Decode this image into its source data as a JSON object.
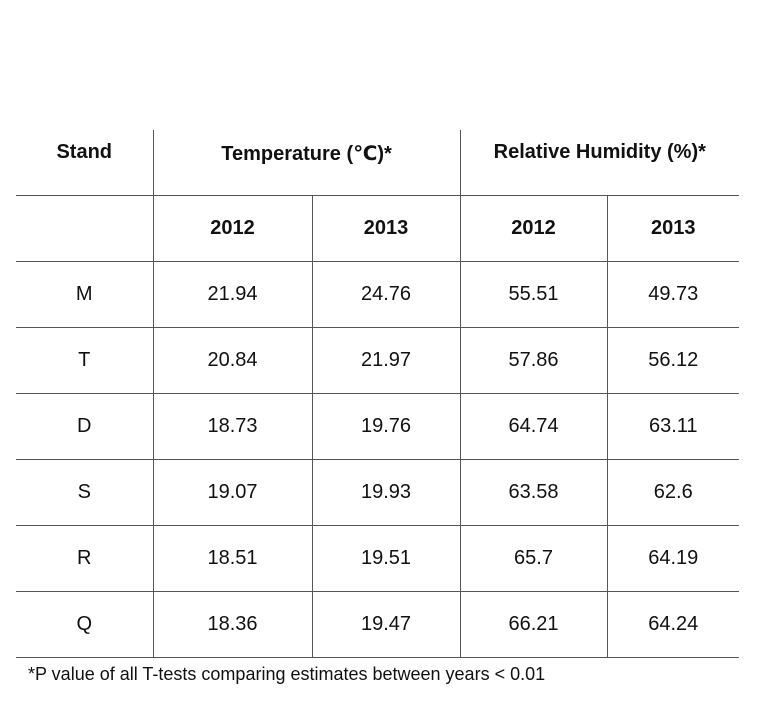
{
  "table": {
    "headers": {
      "stand": "Stand",
      "temperature": "Temperature (℃)*",
      "humidity": "Relative Humidity (%)*",
      "years": [
        "2012",
        "2013",
        "2012",
        "2013"
      ]
    },
    "rows": [
      {
        "stand": "M",
        "t2012": "21.94",
        "t2013": "24.76",
        "h2012": "55.51",
        "h2013": "49.73"
      },
      {
        "stand": "T",
        "t2012": "20.84",
        "t2013": "21.97",
        "h2012": "57.86",
        "h2013": "56.12"
      },
      {
        "stand": "D",
        "t2012": "18.73",
        "t2013": "19.76",
        "h2012": "64.74",
        "h2013": "63.11"
      },
      {
        "stand": "S",
        "t2012": "19.07",
        "t2013": "19.93",
        "h2012": "63.58",
        "h2013": "62.6"
      },
      {
        "stand": "R",
        "t2012": "18.51",
        "t2013": "19.51",
        "h2012": "65.7",
        "h2013": "64.19"
      },
      {
        "stand": "Q",
        "t2012": "18.36",
        "t2013": "19.47",
        "h2012": "66.21",
        "h2013": "64.24"
      }
    ]
  },
  "footnote": "*P value of all T-tests comparing estimates between years < 0.01"
}
